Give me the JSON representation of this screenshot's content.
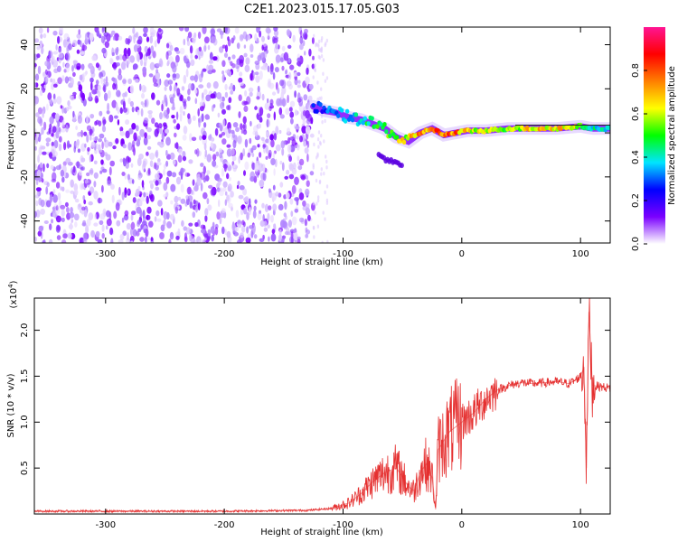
{
  "figure": {
    "title": "C2E1.2023.015.17.05.G03"
  },
  "colors": {
    "spectrum_low": "#7a00ff",
    "snr_line": "#e53030",
    "axis": "#000000"
  },
  "chart_data": [
    {
      "type": "heatmap",
      "name": "spectrogram",
      "xlabel": "Height of straight line (km)",
      "ylabel": "Frequency (Hz)",
      "xlim": [
        -360,
        125
      ],
      "ylim": [
        -50,
        48
      ],
      "xticks": [
        -300,
        -200,
        -100,
        0,
        100
      ],
      "yticks": [
        -40,
        -20,
        0,
        20,
        40
      ],
      "noise_region": {
        "x_from": -360,
        "x_to": -125,
        "amplitude": "0.05-0.20"
      },
      "signal_trace": {
        "x": [
          -125,
          -115,
          -105,
          -95,
          -85,
          -75,
          -65,
          -55,
          -45,
          -35,
          -25,
          -15,
          -5,
          5,
          20,
          40,
          60,
          80,
          100,
          110,
          125
        ],
        "y": [
          12,
          10,
          9,
          7,
          6,
          4,
          2,
          -2,
          -4,
          0,
          2,
          -1,
          0,
          1,
          1,
          2,
          2,
          2,
          3,
          2,
          2
        ],
        "amplitude": [
          0.25,
          0.3,
          0.35,
          0.4,
          0.45,
          0.5,
          0.55,
          0.6,
          0.7,
          0.75,
          0.8,
          0.85,
          0.85,
          0.65,
          0.6,
          0.6,
          0.7,
          0.75,
          0.6,
          0.45,
          0.4
        ]
      },
      "side_branch": {
        "x": [
          -70,
          -60,
          -50
        ],
        "y": [
          -10,
          -13,
          -15
        ]
      },
      "colorbar": {
        "label": "Normalized spectral amplitude",
        "range": [
          0,
          1
        ],
        "ticks": [
          0.0,
          0.2,
          0.4,
          0.6,
          0.8
        ],
        "colors": [
          "#ffffff",
          "#7a00ff",
          "#0000ff",
          "#00e5ff",
          "#00ff00",
          "#ffff00",
          "#ff7f00",
          "#ff0000",
          "#ff1493"
        ]
      }
    },
    {
      "type": "line",
      "name": "snr",
      "xlabel": "Height of straight line (km)",
      "ylabel": "SNR (10 * v/v)",
      "scale_label": "(x10",
      "scale_exp": "4",
      "scale_close": ")",
      "xlim": [
        -360,
        125
      ],
      "ylim": [
        0,
        2.35
      ],
      "xticks": [
        -300,
        -200,
        -100,
        0,
        100
      ],
      "yticks": [
        0.5,
        1.0,
        1.5,
        2.0
      ],
      "x": [
        -360,
        -300,
        -200,
        -130,
        -110,
        -95,
        -85,
        -75,
        -65,
        -55,
        -45,
        -40,
        -35,
        -30,
        -25,
        -22,
        -20,
        -15,
        -10,
        -5,
        0,
        10,
        20,
        30,
        40,
        50,
        60,
        70,
        80,
        90,
        95,
        100,
        103,
        105,
        107,
        110,
        120,
        125
      ],
      "y": [
        0.03,
        0.03,
        0.03,
        0.04,
        0.06,
        0.12,
        0.22,
        0.35,
        0.45,
        0.5,
        0.3,
        0.25,
        0.45,
        0.55,
        0.4,
        0.05,
        0.7,
        0.8,
        0.9,
        0.95,
        1.0,
        1.1,
        1.25,
        1.35,
        1.4,
        1.43,
        1.42,
        1.43,
        1.44,
        1.42,
        1.45,
        1.5,
        1.6,
        0.5,
        2.2,
        1.4,
        1.38,
        1.37
      ]
    }
  ]
}
